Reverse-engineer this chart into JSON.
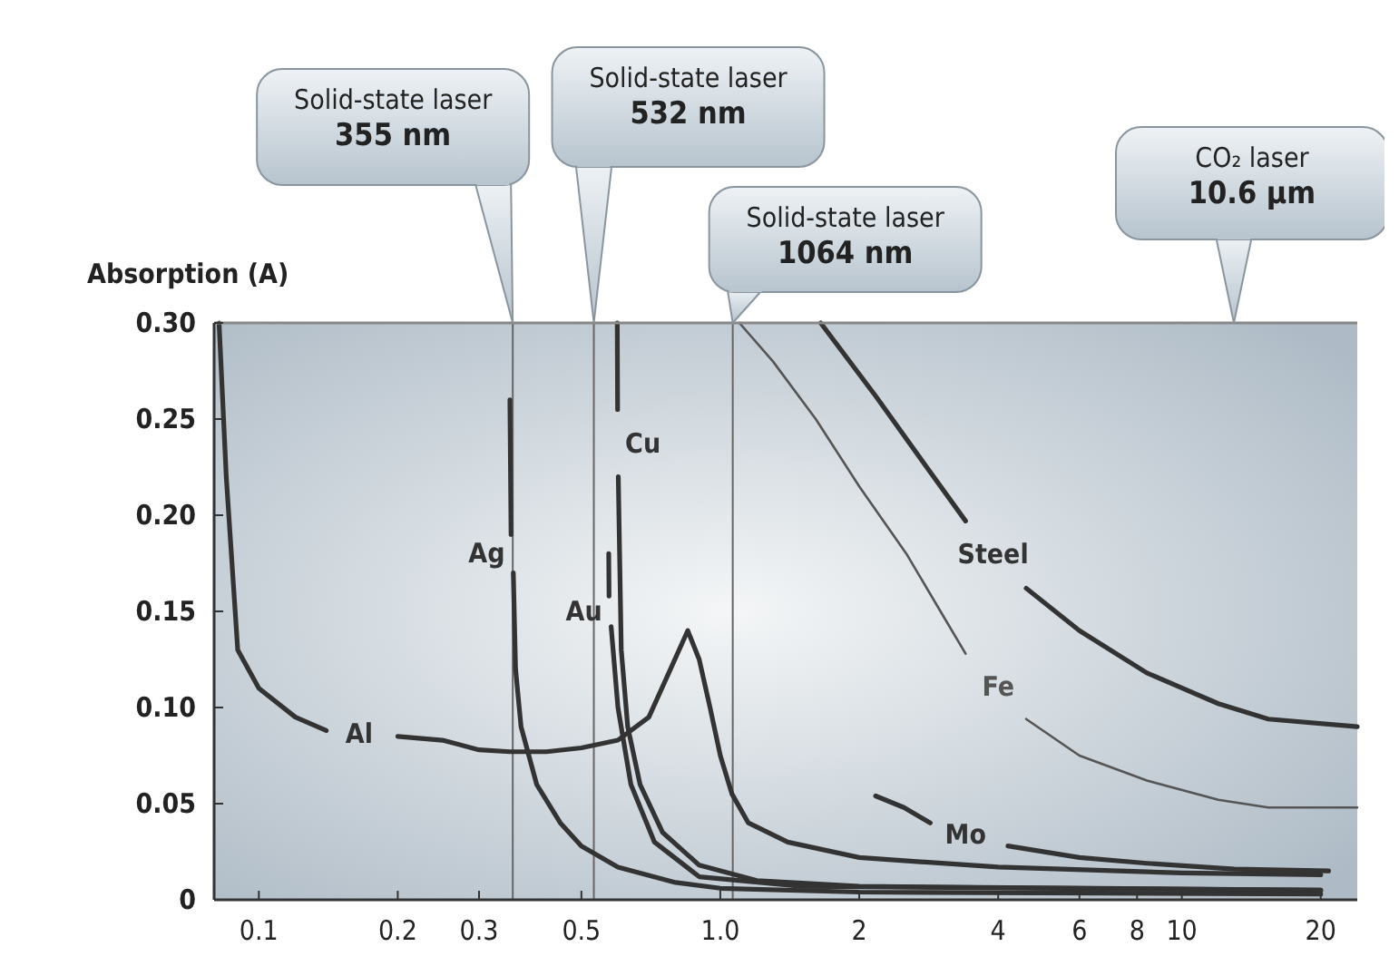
{
  "chart_data": {
    "type": "line",
    "ylabel": "Absorption (A)",
    "log": "x",
    "grid": false,
    "legend": false,
    "marker": "none",
    "line_style": "solid",
    "xlim": [
      0.08,
      24
    ],
    "ylim": [
      0,
      0.3
    ],
    "xticks": [
      0.1,
      0.2,
      0.3,
      0.5,
      {
        "value": 1,
        "label": "1.0"
      },
      2,
      4,
      6,
      8,
      10,
      20
    ],
    "yticks": [
      0,
      0.05,
      {
        "value": 0.1,
        "label": "0.10"
      },
      0.15,
      {
        "value": 0.2,
        "label": "0.20"
      },
      0.25,
      {
        "value": 0.3,
        "label": "0.30"
      }
    ],
    "series": [
      {
        "name": "Al",
        "color": "#333333",
        "x": [
          0.082,
          0.085,
          0.09,
          0.1,
          0.12,
          0.14,
          0.165,
          0.2,
          0.25,
          0.3,
          0.35,
          0.42,
          0.5,
          0.6,
          0.7,
          0.78,
          0.85,
          0.9,
          0.95,
          1.0,
          1.06,
          1.15,
          1.4,
          2,
          4,
          10,
          20
        ],
        "values": [
          0.3,
          0.22,
          0.13,
          0.11,
          0.095,
          0.088,
          null,
          0.085,
          0.083,
          0.078,
          0.077,
          0.077,
          0.079,
          0.083,
          0.095,
          0.12,
          0.14,
          0.125,
          0.1,
          0.075,
          0.055,
          0.04,
          0.03,
          0.022,
          0.017,
          0.014,
          0.013
        ]
      },
      {
        "name": "Ag",
        "color": "#333333",
        "x": [
          0.35,
          0.352,
          0.354,
          0.356,
          0.36,
          0.37,
          0.4,
          0.45,
          0.5,
          0.6,
          0.8,
          1.0,
          2,
          20
        ],
        "values": [
          0.26,
          0.19,
          null,
          0.17,
          0.12,
          0.09,
          0.06,
          0.04,
          0.028,
          0.017,
          0.009,
          0.006,
          0.004,
          0.003
        ]
      },
      {
        "name": "Cu",
        "color": "#333333",
        "x": [
          0.598,
          0.599,
          0.6,
          0.601,
          0.61,
          0.63,
          0.67,
          0.75,
          0.9,
          1.2,
          2,
          20
        ],
        "values": [
          0.3,
          0.255,
          null,
          0.22,
          0.13,
          0.09,
          0.06,
          0.035,
          0.018,
          0.01,
          0.007,
          0.005
        ]
      },
      {
        "name": "Au",
        "color": "#333333",
        "x": [
          0.573,
          0.574,
          0.575,
          0.58,
          0.6,
          0.64,
          0.72,
          0.9,
          1.5,
          20
        ],
        "values": [
          0.18,
          0.158,
          null,
          0.142,
          0.1,
          0.06,
          0.03,
          0.012,
          0.007,
          0.005
        ]
      },
      {
        "name": "Steel",
        "color": "#333333",
        "x": [
          1.65,
          2.17,
          2.8,
          3.4,
          3.9,
          4.6,
          6,
          8.4,
          12,
          15.4,
          24
        ],
        "values": [
          0.3,
          0.262,
          0.225,
          0.197,
          null,
          0.162,
          0.14,
          0.118,
          0.102,
          0.094,
          0.09
        ]
      },
      {
        "name": "Fe",
        "color": "#555555",
        "x": [
          1.1,
          1.3,
          1.61,
          2.0,
          2.53,
          3.0,
          3.4,
          4.0,
          4.6,
          6,
          8.4,
          12,
          15.4,
          24
        ],
        "values": [
          0.3,
          0.28,
          0.25,
          0.215,
          0.18,
          0.15,
          0.128,
          null,
          0.094,
          0.075,
          0.062,
          0.052,
          0.048,
          0.048
        ]
      },
      {
        "name": "Mo",
        "color": "#333333",
        "x": [
          2.17,
          2.5,
          2.85,
          3.4,
          4.2,
          6,
          8.4,
          13,
          20.8
        ],
        "values": [
          0.054,
          0.048,
          0.04,
          null,
          0.028,
          0.022,
          0.019,
          0.016,
          0.015
        ]
      }
    ],
    "ref_lines": [
      {
        "axis": "x",
        "value": 0.355,
        "label": "Solid-state laser\n355 nm",
        "color": "#666666"
      },
      {
        "axis": "x",
        "value": 0.532,
        "label": "Solid-state laser\n532 nm",
        "color": "#666666"
      },
      {
        "axis": "x",
        "value": 1.064,
        "label": "Solid-state laser\n1064 nm",
        "color": "#666666"
      }
    ],
    "annotations": [
      "CO₂ laser\n10.6 µm"
    ]
  }
}
